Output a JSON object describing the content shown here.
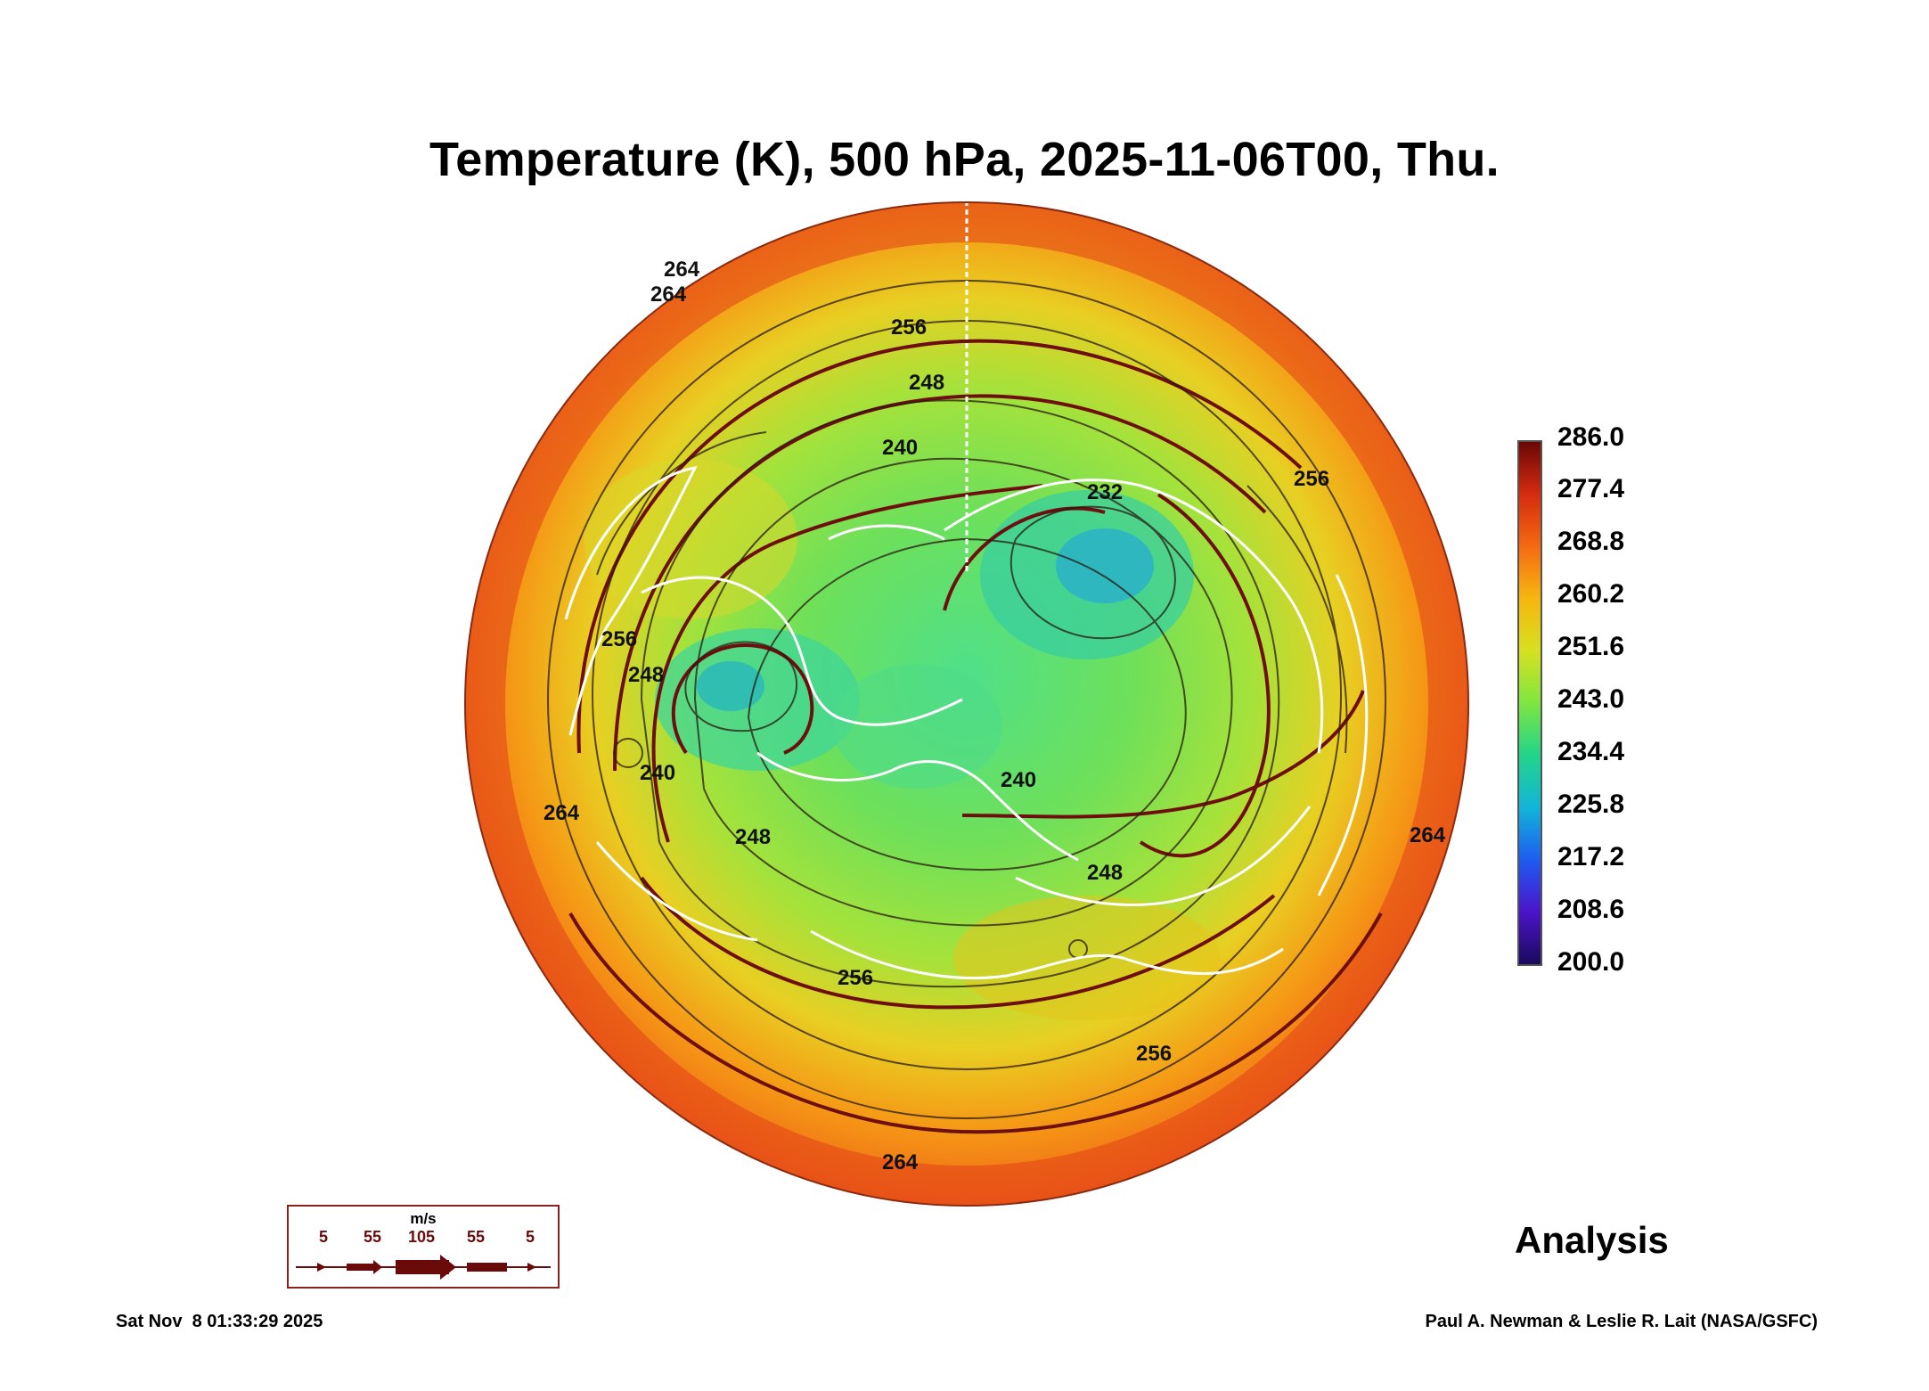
{
  "title": "Temperature (K), 500 hPa, 2025-11-06T00, Thu.",
  "colorbar": {
    "labels": [
      "286.0",
      "277.4",
      "268.8",
      "260.2",
      "251.6",
      "243.0",
      "234.4",
      "225.8",
      "217.2",
      "208.6",
      "200.0"
    ],
    "colors": [
      "#6a0707",
      "#d52b10",
      "#f46a12",
      "#f6b610",
      "#d7e020",
      "#7fe640",
      "#22d48a",
      "#12b5d8",
      "#1f5cf2",
      "#4b14c8",
      "#1a0a5c"
    ]
  },
  "contour_labels": [
    "264",
    "264",
    "256",
    "248",
    "240",
    "232",
    "256",
    "256",
    "248",
    "240",
    "240",
    "248",
    "248",
    "256",
    "256",
    "264",
    "264",
    "264"
  ],
  "analysis_label": "Analysis",
  "wind_legend": {
    "unit": "m/s",
    "speeds": [
      "5",
      "55",
      "105",
      "55",
      "5"
    ]
  },
  "footer": {
    "timestamp": "Sat Nov  8 01:33:29 2025",
    "credit": "Paul A. Newman & Leslie R. Lait (NASA/GSFC)"
  }
}
